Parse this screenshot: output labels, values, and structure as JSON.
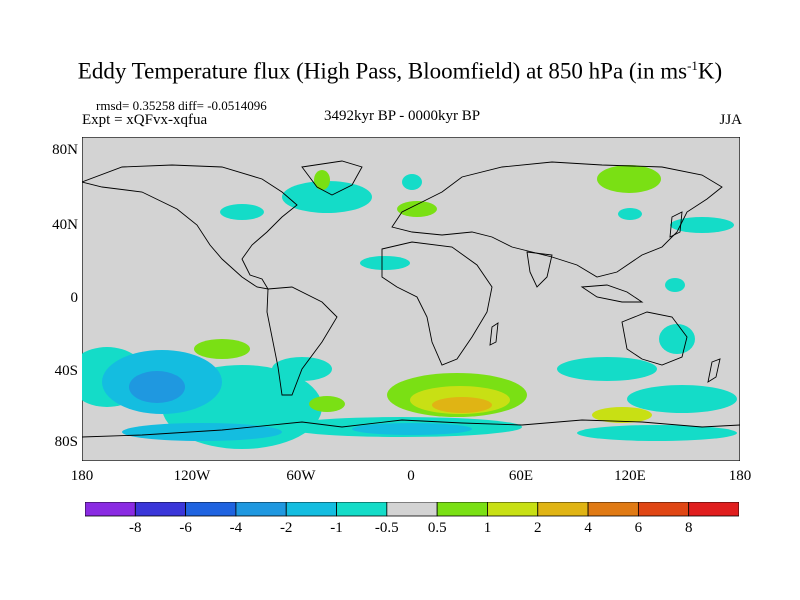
{
  "title": {
    "main": "Eddy Temperature flux (High Pass, Bloomfield) at 850 hPa (in ms",
    "superscript": "-1",
    "unit_end": "K)"
  },
  "stats": {
    "rmsd_line": "rmsd= 0.35258 diff= -0.0514096"
  },
  "experiment": "Expt = xQFvx-xqfua",
  "period": "3492kyr BP - 0000kyr BP",
  "season": "JJA",
  "axes": {
    "lat_labels": [
      "80N",
      "40N",
      "0",
      "40S",
      "80S"
    ],
    "lon_labels": [
      "180",
      "120W",
      "60W",
      "0",
      "60E",
      "120E",
      "180"
    ]
  },
  "colorbar": {
    "labels": [
      "-8",
      "-6",
      "-4",
      "-2",
      "-1",
      "-0.5",
      "0.5",
      "1",
      "2",
      "4",
      "6",
      "8"
    ],
    "colors": [
      "#8a2be2",
      "#3a36d9",
      "#1f63e0",
      "#1f98e0",
      "#14bde0",
      "#14dcc8",
      "#d3d3d3",
      "#7ae014",
      "#c8e014",
      "#e0b414",
      "#e07a14",
      "#e04614",
      "#e01e1e"
    ]
  },
  "map_colors": {
    "background": "#d3d3d3",
    "coastline": "#000000",
    "neg_small": "#14dcc8",
    "neg_mid": "#14bde0",
    "neg_strong": "#1f98e0",
    "pos_small": "#7ae014",
    "pos_mid": "#c8e014",
    "pos_strong": "#e0b414",
    "pos_vstrong": "#e07a14"
  }
}
